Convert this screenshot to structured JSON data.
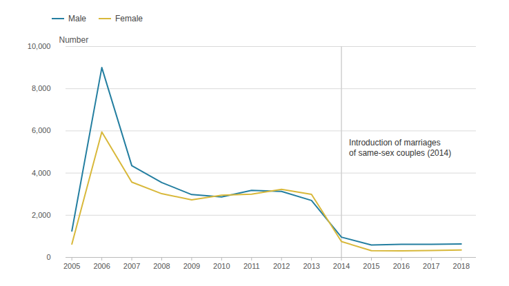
{
  "chart_data": {
    "type": "line",
    "y_label": "Number",
    "x": [
      2005,
      2006,
      2007,
      2008,
      2009,
      2010,
      2011,
      2012,
      2013,
      2014,
      2015,
      2016,
      2017,
      2018
    ],
    "series": [
      {
        "name": "Male",
        "color": "#237ea0",
        "values": [
          1250,
          9000,
          4350,
          3550,
          2980,
          2870,
          3180,
          3130,
          2700,
          960,
          590,
          620,
          620,
          640
        ]
      },
      {
        "name": "Female",
        "color": "#d8b83a",
        "values": [
          630,
          5950,
          3570,
          3020,
          2730,
          2950,
          3000,
          3230,
          2990,
          750,
          320,
          310,
          330,
          350
        ]
      }
    ],
    "xlim": [
      2004.8,
      2018.5
    ],
    "xticks": [
      2005,
      2006,
      2007,
      2008,
      2009,
      2010,
      2011,
      2012,
      2013,
      2014,
      2015,
      2016,
      2017,
      2018
    ],
    "ylim": [
      0,
      10000
    ],
    "yticks": [
      0,
      {
        "value": 2000,
        "label": "2,000"
      },
      {
        "value": 4000,
        "label": "4,000"
      },
      {
        "value": 6000,
        "label": "6,000"
      },
      {
        "value": 8000,
        "label": "8,000"
      },
      {
        "value": 10000,
        "label": "10,000"
      }
    ],
    "grid": true,
    "legend": "top-left",
    "annotations": [
      {
        "x": 2014,
        "text": "Introduction of marriages\nof same-sex couples (2014)"
      }
    ]
  }
}
